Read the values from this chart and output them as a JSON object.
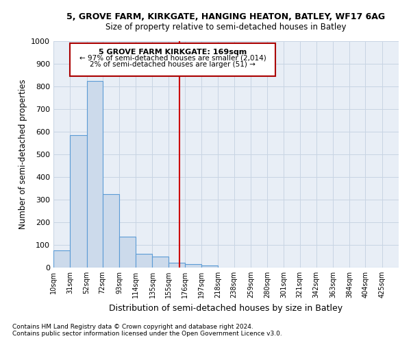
{
  "title": "5, GROVE FARM, KIRKGATE, HANGING HEATON, BATLEY, WF17 6AG",
  "subtitle": "Size of property relative to semi-detached houses in Batley",
  "xlabel": "Distribution of semi-detached houses by size in Batley",
  "ylabel": "Number of semi-detached properties",
  "footer_line1": "Contains HM Land Registry data © Crown copyright and database right 2024.",
  "footer_line2": "Contains public sector information licensed under the Open Government Licence v3.0.",
  "annotation_title": "5 GROVE FARM KIRKGATE: 169sqm",
  "annotation_line2": "← 97% of semi-detached houses are smaller (2,014)",
  "annotation_line3": "2% of semi-detached houses are larger (51) →",
  "property_size": 169,
  "bar_categories": [
    "10sqm",
    "31sqm",
    "52sqm",
    "72sqm",
    "93sqm",
    "114sqm",
    "135sqm",
    "155sqm",
    "176sqm",
    "197sqm",
    "218sqm",
    "238sqm",
    "259sqm",
    "280sqm",
    "301sqm",
    "321sqm",
    "342sqm",
    "363sqm",
    "384sqm",
    "404sqm",
    "425sqm"
  ],
  "bar_values": [
    75,
    585,
    825,
    325,
    135,
    60,
    47,
    20,
    15,
    8,
    0,
    0,
    0,
    0,
    0,
    0,
    0,
    0,
    0,
    0,
    0
  ],
  "bar_edges": [
    10,
    31,
    52,
    72,
    93,
    114,
    135,
    155,
    176,
    197,
    218,
    238,
    259,
    280,
    301,
    321,
    342,
    363,
    384,
    404,
    425,
    446
  ],
  "bar_color": "#ccdaeb",
  "bar_edge_color": "#5b9bd5",
  "vline_x": 169,
  "vline_color": "#cc0000",
  "ylim": [
    0,
    1000
  ],
  "yticks": [
    0,
    100,
    200,
    300,
    400,
    500,
    600,
    700,
    800,
    900,
    1000
  ],
  "annotation_box_color": "#aa0000",
  "grid_color": "#c8d4e3",
  "bg_color": "#e8eef6"
}
